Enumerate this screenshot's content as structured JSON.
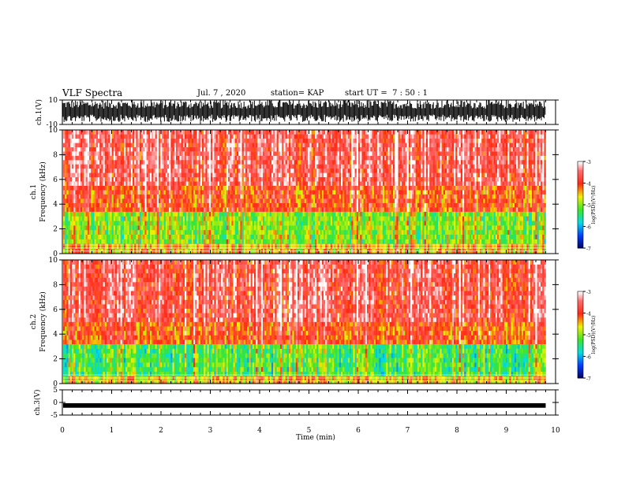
{
  "header": {
    "title": "VLF Spectra",
    "date": "Jul. 7 , 2020",
    "station": "station= KAP",
    "start": "start UT =  7 : 50 : 1"
  },
  "chart_data": [
    {
      "type": "line",
      "panel": "ch1-waveform",
      "ylabel": "ch.1(V)",
      "ylim": [
        -10,
        10
      ],
      "yticks": [
        "10",
        "-10"
      ],
      "xlim": [
        0,
        10
      ],
      "description_values": "dense oscillating waveform filling roughly -8 to +10 V"
    },
    {
      "type": "heatmap",
      "panel": "ch1-spectrogram",
      "ylabel": "ch.1\nFrequency (kHz)",
      "ylim": [
        0,
        10
      ],
      "yticks": [
        "0",
        "2",
        "4",
        "6",
        "8",
        "10"
      ],
      "xlim": [
        0,
        9.8
      ],
      "colorbar": {
        "label": "log(PSD)(V²/Hz)",
        "ticks": [
          "-3",
          "-4",
          "-5",
          "-6",
          "-7"
        ],
        "range": [
          -7,
          -3
        ]
      },
      "bands": [
        {
          "f": [
            0,
            0.8
          ],
          "level": -4.5
        },
        {
          "f": [
            0.8,
            3.4
          ],
          "level": -5.0
        },
        {
          "f": [
            3.4,
            5.5
          ],
          "level": -4.0
        },
        {
          "f": [
            5.5,
            10
          ],
          "level": -3.6
        }
      ]
    },
    {
      "type": "heatmap",
      "panel": "ch2-spectrogram",
      "ylabel": "ch.2\nFrequency (kHz)",
      "ylim": [
        0,
        10
      ],
      "yticks": [
        "0",
        "2",
        "4",
        "6",
        "8",
        "10"
      ],
      "xlim": [
        0,
        9.8
      ],
      "colorbar": {
        "label": "log(PSD)(V²/Hz)",
        "ticks": [
          "-3",
          "-4",
          "-5",
          "-6",
          "-7"
        ],
        "range": [
          -7,
          -3
        ]
      },
      "bands": [
        {
          "f": [
            0,
            0.6
          ],
          "level": -4.5
        },
        {
          "f": [
            0.6,
            3.2
          ],
          "level": -5.2
        },
        {
          "f": [
            3.2,
            5.0
          ],
          "level": -4.0
        },
        {
          "f": [
            5.0,
            10
          ],
          "level": -3.6
        }
      ]
    },
    {
      "type": "line",
      "panel": "ch3-waveform",
      "ylabel": "ch.3(V)",
      "ylim": [
        -5,
        5
      ],
      "yticks": [
        "5",
        "0",
        "-5"
      ],
      "xlim": [
        0,
        10
      ],
      "level": -1.2
    }
  ],
  "xaxis": {
    "label": "Time (min)",
    "ticks": [
      "0",
      "1",
      "2",
      "3",
      "4",
      "5",
      "6",
      "7",
      "8",
      "9",
      "10"
    ]
  }
}
